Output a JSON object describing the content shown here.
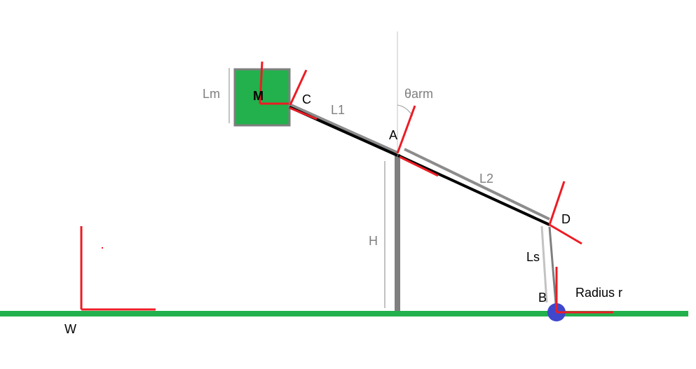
{
  "colors": {
    "ground": "#22b14c",
    "frame": "#ed1c24",
    "arm": "#000000",
    "arm_outline": "#8c8c8c",
    "guide": "#c3c3c3",
    "post": "#7f7f7f",
    "mass_fill": "#22b14c",
    "mass_border": "#7f7f7f",
    "wheel": "#3f48cc",
    "label_dark": "#000000",
    "label_gray": "#7f7f7f"
  },
  "labels": {
    "lm": "Lm",
    "m": "M",
    "c": "C",
    "l1": "L1",
    "theta_arm": "θarm",
    "a": "A",
    "l2": "L2",
    "d": "D",
    "h": "H",
    "ls": "Ls",
    "b": "B",
    "radius": "Radius r",
    "w": "W"
  }
}
